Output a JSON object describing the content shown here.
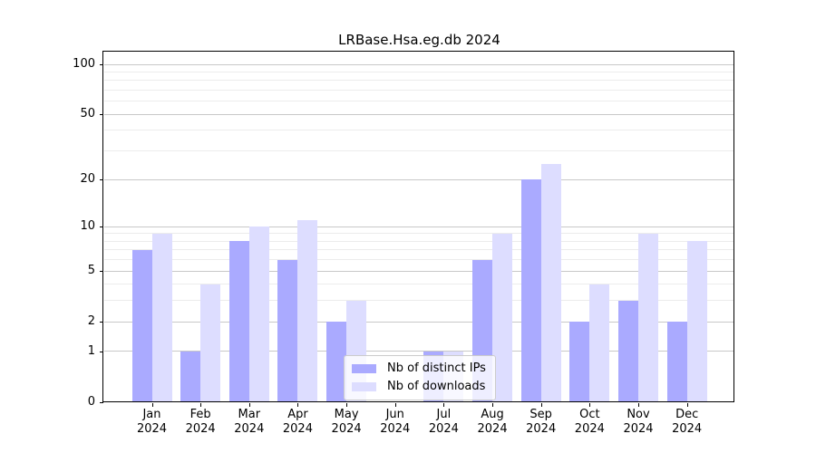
{
  "chart_data": {
    "type": "bar",
    "title": "LRBase.Hsa.eg.db 2024",
    "year": "2024",
    "categories": [
      "Jan",
      "Feb",
      "Mar",
      "Apr",
      "May",
      "Jun",
      "Jul",
      "Aug",
      "Sep",
      "Oct",
      "Nov",
      "Dec"
    ],
    "series": [
      {
        "name": "Nb of distinct IPs",
        "color": "#aaaaff",
        "values": [
          7,
          1,
          8,
          6,
          2,
          0,
          1,
          6,
          20,
          2,
          3,
          2
        ]
      },
      {
        "name": "Nb of downloads",
        "color": "#ddddff",
        "values": [
          9,
          4,
          10,
          11,
          3,
          0,
          1,
          9,
          25,
          4,
          9,
          8
        ]
      }
    ],
    "yscale": "log1p",
    "ylim": [
      0,
      118
    ],
    "yticks": [
      0,
      1,
      2,
      5,
      10,
      20,
      50,
      100
    ],
    "minor_gridlines": [
      3,
      4,
      6,
      7,
      8,
      9,
      30,
      40,
      60,
      70,
      80,
      90
    ],
    "grid": true,
    "legend_position": "lower center",
    "xlabel": "",
    "ylabel": ""
  },
  "colors": {
    "bar_ips": "#aaaaff",
    "bar_downloads": "#ddddff",
    "grid_major": "#c8c8c8",
    "grid_minor": "#ececec",
    "axis": "#000000",
    "legend_border": "#cccccc"
  }
}
